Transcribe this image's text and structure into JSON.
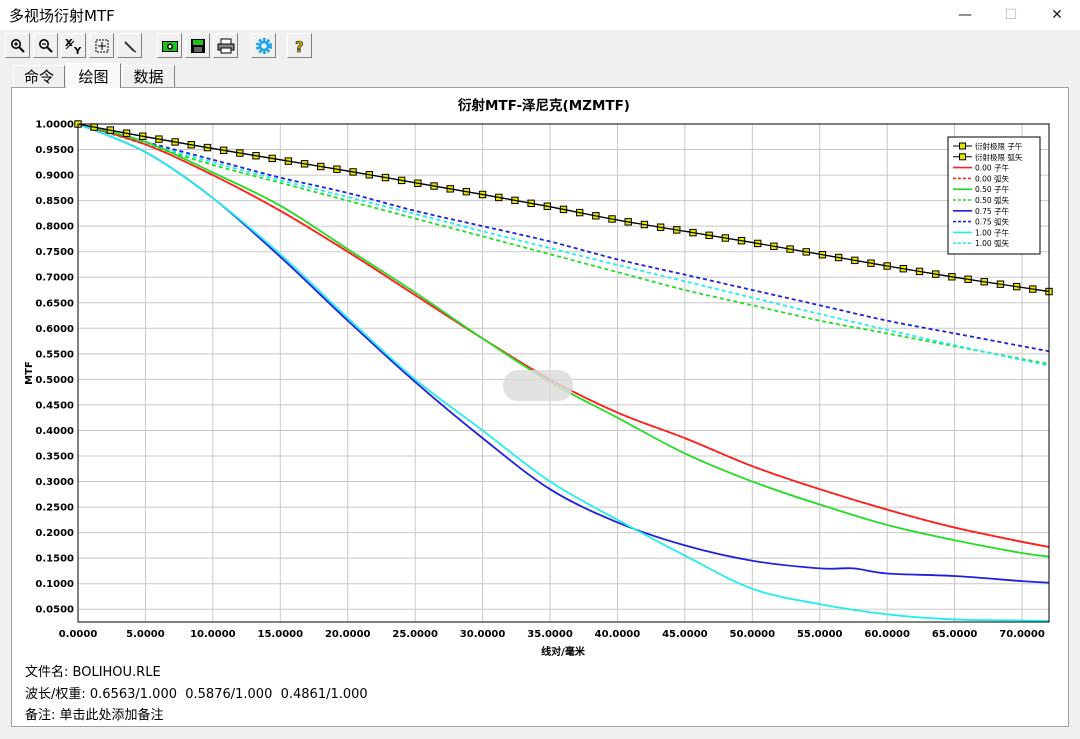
{
  "window": {
    "title": "多视场衍射MTF",
    "min_label": "—",
    "max_label": "☐",
    "close_label": "✕"
  },
  "toolbar": {
    "buttons": [
      {
        "name": "zoom-in-button",
        "icon": "magnifier-plus-icon"
      },
      {
        "name": "zoom-out-button",
        "icon": "magnifier-minus-icon"
      },
      {
        "name": "xy-axes-button",
        "icon": "xy-axes-icon"
      },
      {
        "name": "fit-view-button",
        "icon": "fit-frame-icon"
      },
      {
        "name": "pen-button",
        "icon": "pen-icon"
      },
      {
        "name": "camera-button",
        "icon": "camera-icon"
      },
      {
        "name": "save-button",
        "icon": "floppy-disk-icon"
      },
      {
        "name": "print-button",
        "icon": "printer-icon"
      },
      {
        "name": "settings-button",
        "icon": "gear-icon"
      },
      {
        "name": "help-button",
        "icon": "question-mark-icon"
      }
    ]
  },
  "tabs": [
    {
      "label": "命令"
    },
    {
      "label": "绘图"
    },
    {
      "label": "数据"
    }
  ],
  "active_tab": "绘图",
  "info": {
    "file_label": "文件名:",
    "file_value": "BOLIHOU.RLE",
    "wave_label": "波长/权重:",
    "wave_value": "0.6563/1.000  0.5876/1.000  0.4861/1.000",
    "note_label": "备注:",
    "note_value": "单击此处添加备注"
  },
  "colors": {
    "limit": "#e6e600",
    "f000": "#ff2020",
    "f050": "#22dd22",
    "f075": "#2020dd",
    "f100": "#22eeee"
  },
  "chart_data": {
    "type": "line",
    "title": "衍射MTF-泽尼克(MZMTF)",
    "xlabel": "线对/毫米",
    "ylabel": "MTF",
    "xlim": [
      0,
      72
    ],
    "ylim": [
      0.025,
      1.0
    ],
    "grid": true,
    "legend_position": "top-right",
    "x_ticks": [
      "0.0000",
      "5.0000",
      "10.0000",
      "15.0000",
      "20.0000",
      "25.0000",
      "30.0000",
      "35.0000",
      "40.0000",
      "45.0000",
      "50.0000",
      "55.0000",
      "60.0000",
      "65.0000",
      "70.0000"
    ],
    "y_ticks": [
      "1.0000",
      "0.9500",
      "0.9000",
      "0.8500",
      "0.8000",
      "0.7500",
      "0.7000",
      "0.6500",
      "0.6000",
      "0.5500",
      "0.5000",
      "0.4500",
      "0.4000",
      "0.3500",
      "0.3000",
      "0.2500",
      "0.2000",
      "0.1500",
      "0.1000",
      "0.0500"
    ],
    "series": [
      {
        "name": "衍射极限 子午",
        "color": "#e6e600",
        "style": "marker",
        "x": [
          0,
          5,
          10,
          15,
          20,
          25,
          30,
          35,
          40,
          45,
          50,
          55,
          60,
          65,
          70,
          72
        ],
        "y": [
          1.0,
          0.975,
          0.952,
          0.93,
          0.908,
          0.885,
          0.862,
          0.838,
          0.812,
          0.79,
          0.768,
          0.745,
          0.722,
          0.7,
          0.68,
          0.672
        ]
      },
      {
        "name": "衍射极限 弧矢",
        "color": "#e6e600",
        "style": "marker",
        "x": [
          0,
          5,
          10,
          15,
          20,
          25,
          30,
          35,
          40,
          45,
          50,
          55,
          60,
          65,
          70,
          72
        ],
        "y": [
          1.0,
          0.975,
          0.952,
          0.93,
          0.908,
          0.885,
          0.862,
          0.838,
          0.812,
          0.79,
          0.768,
          0.745,
          0.722,
          0.7,
          0.68,
          0.672
        ]
      },
      {
        "name": "0.00 子午",
        "color": "#ff2020",
        "style": "solid",
        "x": [
          0,
          5,
          10,
          15,
          20,
          25,
          30,
          35,
          40,
          45,
          50,
          55,
          60,
          65,
          70,
          72
        ],
        "y": [
          1.0,
          0.96,
          0.9,
          0.83,
          0.75,
          0.665,
          0.58,
          0.5,
          0.435,
          0.385,
          0.33,
          0.285,
          0.245,
          0.21,
          0.182,
          0.172
        ]
      },
      {
        "name": "0.00 弧矢",
        "color": "#ff2020",
        "style": "dashed",
        "x": [
          0,
          5,
          10,
          15,
          20,
          25,
          30,
          35,
          40,
          45,
          50,
          55,
          60,
          65,
          70,
          72
        ],
        "y": [
          1.0,
          0.96,
          0.9,
          0.83,
          0.75,
          0.665,
          0.58,
          0.5,
          0.435,
          0.385,
          0.33,
          0.285,
          0.245,
          0.21,
          0.182,
          0.172
        ]
      },
      {
        "name": "0.50 子午",
        "color": "#22dd22",
        "style": "solid",
        "x": [
          0,
          5,
          10,
          15,
          20,
          25,
          30,
          35,
          40,
          45,
          50,
          55,
          60,
          65,
          70,
          72
        ],
        "y": [
          1.0,
          0.965,
          0.905,
          0.84,
          0.755,
          0.67,
          0.58,
          0.495,
          0.425,
          0.355,
          0.3,
          0.255,
          0.215,
          0.185,
          0.16,
          0.153
        ]
      },
      {
        "name": "0.50 弧矢",
        "color": "#22dd22",
        "style": "dashed",
        "x": [
          0,
          5,
          10,
          15,
          20,
          25,
          30,
          35,
          40,
          45,
          50,
          55,
          60,
          65,
          70,
          72
        ],
        "y": [
          1.0,
          0.96,
          0.92,
          0.885,
          0.85,
          0.815,
          0.78,
          0.745,
          0.71,
          0.675,
          0.645,
          0.615,
          0.59,
          0.565,
          0.54,
          0.53
        ]
      },
      {
        "name": "0.75 子午",
        "color": "#2020dd",
        "style": "solid",
        "x": [
          0,
          5,
          10,
          15,
          20,
          25,
          30,
          35,
          40,
          45,
          50,
          55,
          57.5,
          60,
          65,
          70,
          72
        ],
        "y": [
          1.0,
          0.945,
          0.855,
          0.74,
          0.615,
          0.495,
          0.385,
          0.285,
          0.22,
          0.175,
          0.145,
          0.13,
          0.13,
          0.12,
          0.115,
          0.105,
          0.102
        ]
      },
      {
        "name": "0.75 弧矢",
        "color": "#2020dd",
        "style": "dashed",
        "x": [
          0,
          5,
          10,
          15,
          20,
          25,
          30,
          35,
          40,
          45,
          50,
          55,
          60,
          65,
          70,
          72
        ],
        "y": [
          1.0,
          0.965,
          0.93,
          0.895,
          0.865,
          0.83,
          0.8,
          0.77,
          0.735,
          0.705,
          0.675,
          0.645,
          0.615,
          0.59,
          0.565,
          0.555
        ]
      },
      {
        "name": "1.00 子午",
        "color": "#22eeee",
        "style": "solid",
        "x": [
          0,
          5,
          10,
          15,
          20,
          25,
          30,
          35,
          40,
          45,
          50,
          55,
          60,
          65,
          70,
          72
        ],
        "y": [
          1.0,
          0.945,
          0.855,
          0.745,
          0.62,
          0.5,
          0.4,
          0.3,
          0.225,
          0.155,
          0.09,
          0.06,
          0.04,
          0.03,
          0.028,
          0.027
        ]
      },
      {
        "name": "1.00 弧矢",
        "color": "#22eeee",
        "style": "dashed",
        "x": [
          0,
          5,
          10,
          15,
          20,
          25,
          30,
          35,
          40,
          45,
          50,
          55,
          60,
          65,
          70,
          72
        ],
        "y": [
          1.0,
          0.962,
          0.925,
          0.89,
          0.857,
          0.824,
          0.79,
          0.757,
          0.724,
          0.692,
          0.66,
          0.628,
          0.597,
          0.567,
          0.538,
          0.527
        ]
      }
    ]
  }
}
